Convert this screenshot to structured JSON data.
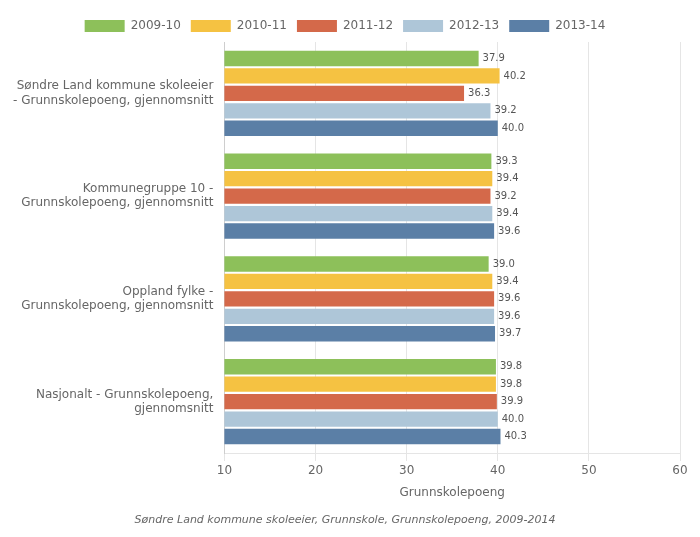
{
  "chart_data": {
    "type": "bar",
    "orientation": "horizontal",
    "categories": [
      "Søndre Land kommune skoleeier\n- Grunnskolepoeng, gjennomsnitt",
      "Kommunegruppe 10 -\nGrunnskolepoeng, gjennomsnitt",
      "Oppland fylke -\nGrunnskolepoeng, gjennomsnitt",
      "Nasjonalt - Grunnskolepoeng,\ngjennomsnitt"
    ],
    "series": [
      {
        "name": "2009-10",
        "color": "#8dc05a",
        "values": [
          37.9,
          39.3,
          39.0,
          39.8
        ],
        "value_labels": [
          "37.9",
          "39.3",
          "39.0",
          "39.8"
        ]
      },
      {
        "name": "2010-11",
        "color": "#f5c242",
        "values": [
          40.2,
          39.4,
          39.4,
          39.8
        ],
        "value_labels": [
          "40.2",
          "39.4",
          "39.4",
          "39.8"
        ]
      },
      {
        "name": "2011-12",
        "color": "#d4694a",
        "values": [
          36.3,
          39.2,
          39.6,
          39.9
        ],
        "value_labels": [
          "36.3",
          "39.2",
          "39.6",
          "39.9"
        ]
      },
      {
        "name": "2012-13",
        "color": "#aec6d8",
        "values": [
          39.2,
          39.4,
          39.6,
          40.0
        ],
        "value_labels": [
          "39.2",
          "39.4",
          "39.6",
          "40.0"
        ]
      },
      {
        "name": "2013-14",
        "color": "#5b7fa6",
        "values": [
          40.0,
          39.6,
          39.7,
          40.3
        ],
        "value_labels": [
          "40.0",
          "39.6",
          "39.7",
          "40.3"
        ]
      }
    ],
    "xlabel": "Grunnskolepoeng",
    "xlim": [
      10,
      60
    ],
    "xticks": [
      10,
      20,
      30,
      40,
      50,
      60
    ],
    "grid": true,
    "legend": "top",
    "data_labels": true,
    "footnote": "Søndre Land kommune skoleeier, Grunnskole, Grunnskolepoeng, 2009-2014"
  }
}
